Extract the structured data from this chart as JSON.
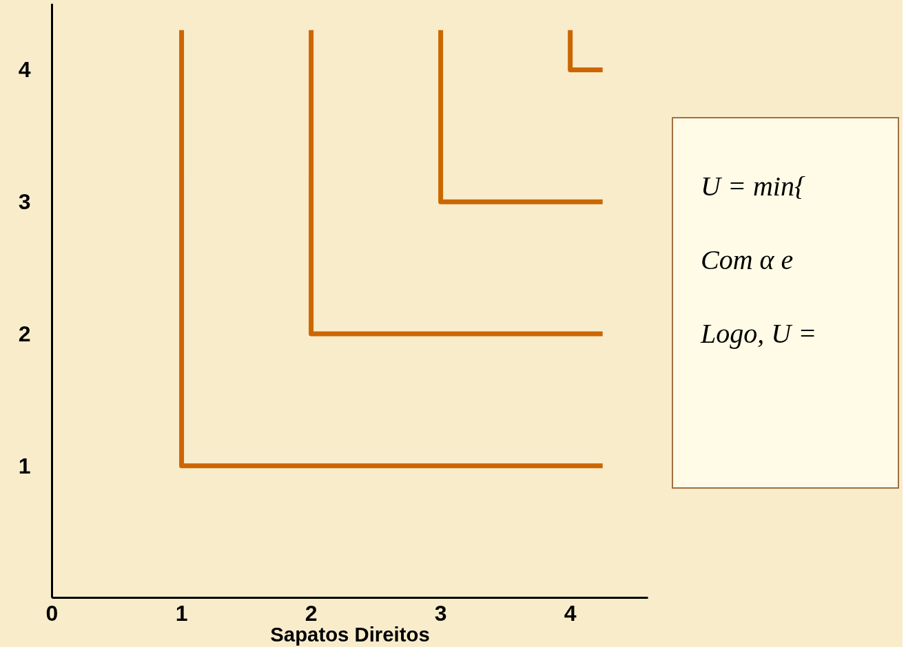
{
  "chart_data": {
    "type": "line",
    "xlabel": "Sapatos Direitos",
    "xlim": [
      0,
      4.6
    ],
    "ylim": [
      0,
      4.5
    ],
    "xticks": [
      0,
      1,
      2,
      3,
      4
    ],
    "yticks": [
      1,
      2,
      3,
      4
    ],
    "grid": false,
    "marker": "none",
    "line_style": "solid",
    "series": [
      {
        "color": "#cc6600",
        "x": [
          1,
          1,
          4.25
        ],
        "values": [
          4.3,
          1,
          1
        ]
      },
      {
        "color": "#cc6600",
        "x": [
          2,
          2,
          4.25
        ],
        "values": [
          4.3,
          2,
          2
        ]
      },
      {
        "color": "#cc6600",
        "x": [
          3,
          3,
          4.25
        ],
        "values": [
          4.3,
          3,
          3
        ]
      },
      {
        "color": "#cc6600",
        "x": [
          4,
          4,
          4.25
        ],
        "values": [
          4.3,
          4,
          4
        ]
      }
    ],
    "annotations": [
      "U = min{",
      "Com α e",
      "Logo, U ="
    ]
  }
}
